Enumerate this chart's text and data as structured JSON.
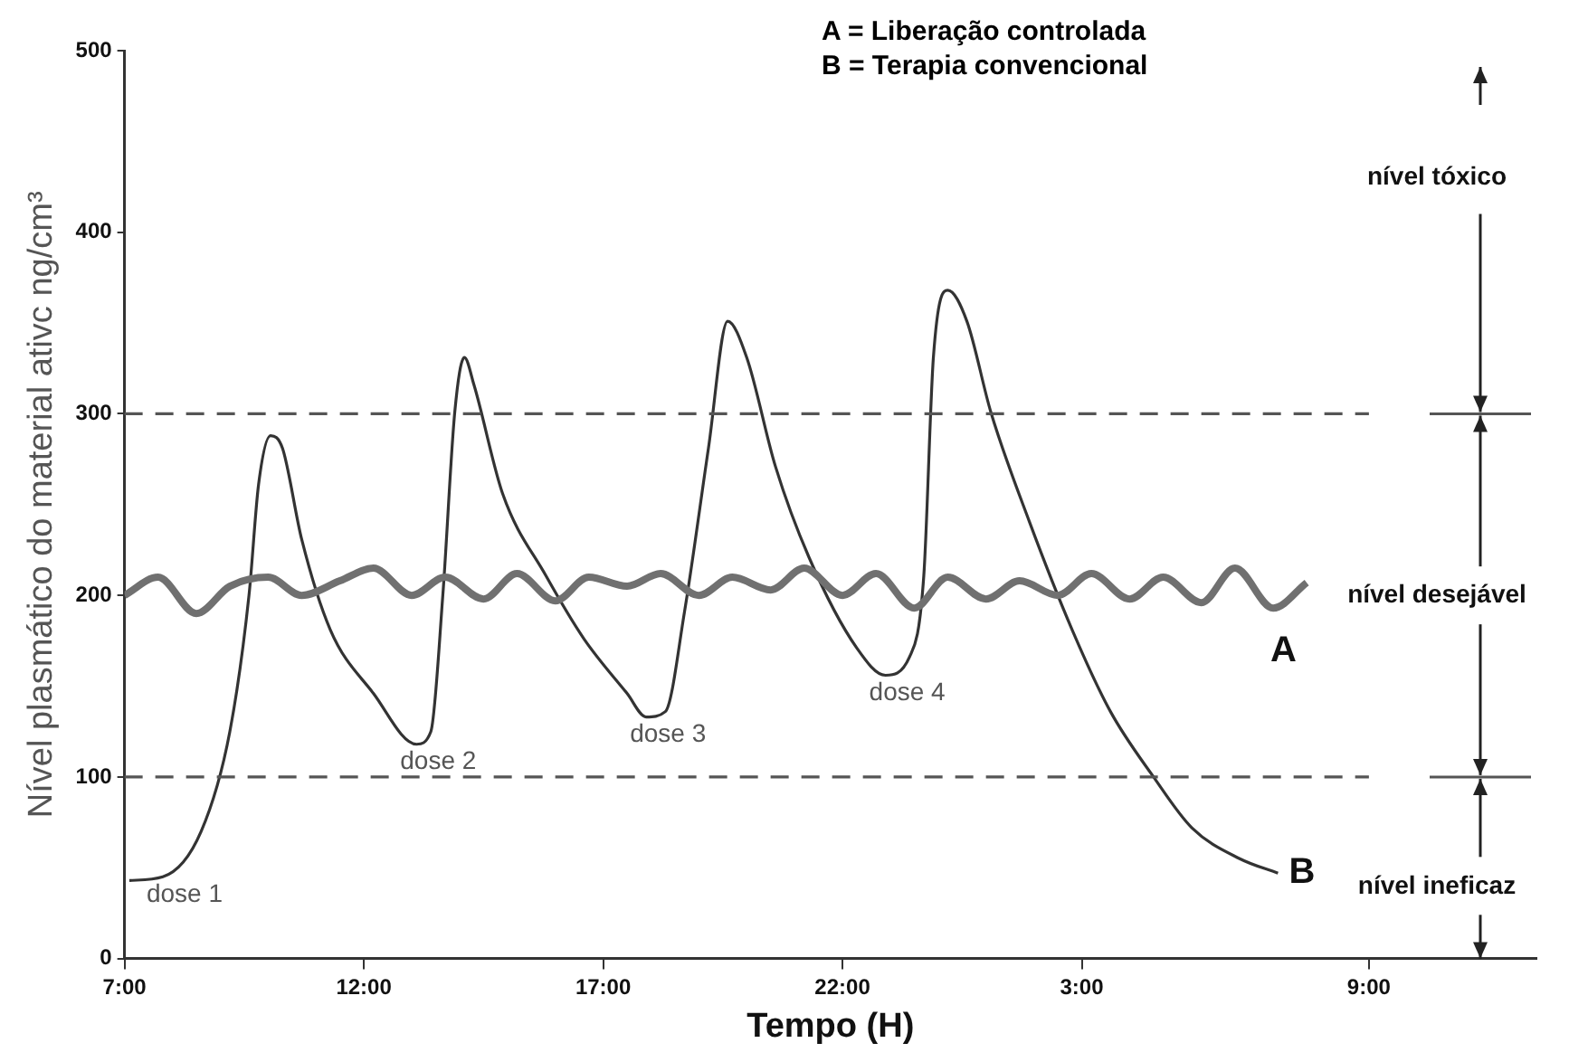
{
  "chart_data": {
    "type": "line",
    "ylabel": "Nível plasmático do material ativc ng/cm³",
    "xlabel": "Tempo (H)",
    "xlim": [
      "2000-01-01T07:00",
      "2000-01-02T12:30"
    ],
    "ylim": [
      0,
      500
    ],
    "xticks": [
      {
        "value": "2000-01-01T07:00",
        "label": "7:00"
      },
      {
        "value": "2000-01-01T12:00",
        "label": "12:00"
      },
      {
        "value": "2000-01-01T17:00",
        "label": "17:00"
      },
      {
        "value": "2000-01-01T22:00",
        "label": "22:00"
      },
      {
        "value": "2000-01-02T03:00",
        "label": "3:00"
      },
      {
        "value": "2000-01-02T09:00",
        "label": "9:00"
      }
    ],
    "yticks": [
      0,
      100,
      200,
      300,
      400,
      500
    ],
    "grid": false,
    "legend": false,
    "marker": "none",
    "line_style": "solid",
    "series": [
      {
        "name": "A",
        "color": "#707070",
        "x": [
          "2000-01-01T07:00",
          "2000-01-01T07:42",
          "2000-01-01T08:30",
          "2000-01-01T09:12",
          "2000-01-01T10:00",
          "2000-01-01T10:42",
          "2000-01-01T11:30",
          "2000-01-01T12:12",
          "2000-01-01T13:00",
          "2000-01-01T13:42",
          "2000-01-01T14:30",
          "2000-01-01T15:12",
          "2000-01-01T16:00",
          "2000-01-01T16:42",
          "2000-01-01T17:30",
          "2000-01-01T18:12",
          "2000-01-01T19:00",
          "2000-01-01T19:42",
          "2000-01-01T20:30",
          "2000-01-01T21:12",
          "2000-01-01T22:00",
          "2000-01-01T22:42",
          "2000-01-01T23:30",
          "2000-01-02T00:12",
          "2000-01-02T01:00",
          "2000-01-02T01:42",
          "2000-01-02T02:30",
          "2000-01-02T03:12",
          "2000-01-02T04:00",
          "2000-01-02T04:42",
          "2000-01-02T05:30",
          "2000-01-02T06:12",
          "2000-01-02T07:00",
          "2000-01-02T07:42"
        ],
        "values": [
          200,
          210,
          190,
          205,
          210,
          200,
          208,
          215,
          200,
          210,
          198,
          212,
          197,
          210,
          205,
          212,
          200,
          210,
          203,
          215,
          200,
          212,
          193,
          210,
          198,
          208,
          200,
          212,
          198,
          210,
          196,
          215,
          193,
          207
        ]
      },
      {
        "name": "B",
        "color": "#333333",
        "x": [
          "2000-01-01T07:06",
          "2000-01-01T07:48",
          "2000-01-01T08:36",
          "2000-01-01T09:12",
          "2000-01-01T09:36",
          "2000-01-01T09:48",
          "2000-01-01T10:03",
          "2000-01-01T10:18",
          "2000-01-01T10:42",
          "2000-01-01T11:18",
          "2000-01-01T12:12",
          "2000-01-01T13:06",
          "2000-01-01T13:24",
          "2000-01-01T13:39",
          "2000-01-01T13:54",
          "2000-01-01T14:06",
          "2000-01-01T14:18",
          "2000-01-01T14:54",
          "2000-01-01T15:48",
          "2000-01-01T16:36",
          "2000-01-01T17:30",
          "2000-01-01T17:54",
          "2000-01-01T18:18",
          "2000-01-01T18:42",
          "2000-01-01T19:12",
          "2000-01-01T19:36",
          "2000-01-01T20:00",
          "2000-01-01T20:36",
          "2000-01-01T21:18",
          "2000-01-01T22:18",
          "2000-01-01T22:54",
          "2000-01-01T23:24",
          "2000-01-01T23:42",
          "2000-01-01T23:54",
          "2000-01-02T00:12",
          "2000-01-02T00:36",
          "2000-01-02T01:06",
          "2000-01-02T01:54",
          "2000-01-02T02:48",
          "2000-01-02T03:36",
          "2000-01-02T04:30",
          "2000-01-02T05:18",
          "2000-01-02T06:18",
          "2000-01-02T07:06"
        ],
        "values": [
          43,
          45,
          70,
          125,
          200,
          261,
          288,
          281,
          231,
          181,
          146,
          118,
          125,
          200,
          301,
          331,
          316,
          256,
          211,
          176,
          146,
          133,
          136,
          191,
          281,
          351,
          331,
          271,
          221,
          171,
          156,
          166,
          211,
          331,
          368,
          351,
          301,
          241,
          181,
          136,
          100,
          72,
          55,
          47
        ]
      }
    ],
    "ref_lines": [
      {
        "axis": "y",
        "value": 300,
        "line_style": "dashed",
        "color": "#555555"
      },
      {
        "axis": "y",
        "value": 100,
        "line_style": "dashed",
        "color": "#555555"
      }
    ],
    "annotations": [
      "A = Liberação controlada",
      "B = Terapia convencional",
      "nível tóxico",
      "nível desejável",
      "nível ineficaz",
      {
        "text": "dose 1",
        "x": "2000-01-01T07:48",
        "y": 45
      },
      {
        "text": "dose 2",
        "x": "2000-01-01T13:06",
        "y": 118
      },
      {
        "text": "dose 3",
        "x": "2000-01-01T17:54",
        "y": 133
      },
      {
        "text": "dose 4",
        "x": "2000-01-01T22:54",
        "y": 156
      }
    ]
  }
}
